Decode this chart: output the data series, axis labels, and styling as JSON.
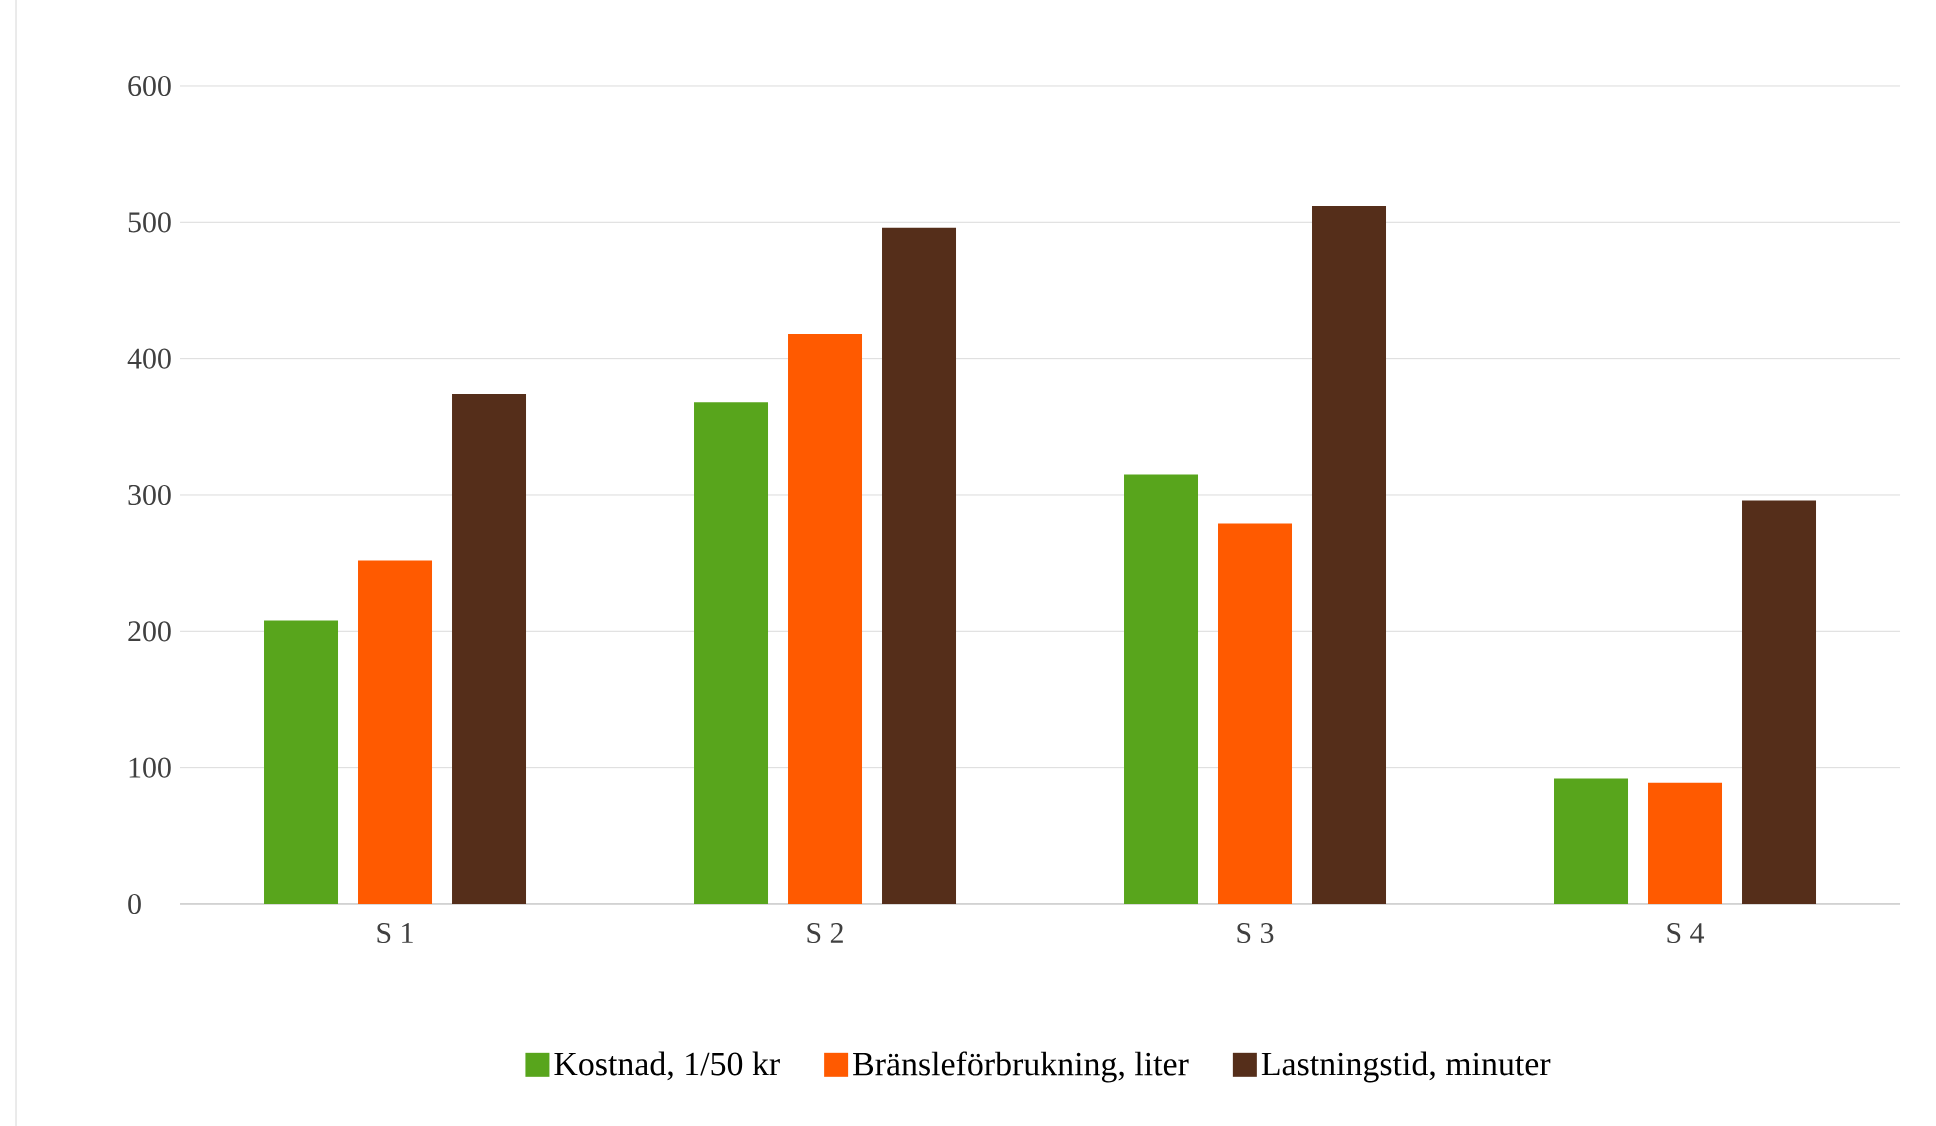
{
  "chart_data": {
    "type": "bar",
    "categories": [
      "S 1",
      "S 2",
      "S 3",
      "S 4"
    ],
    "series": [
      {
        "name": "Kostnad, 1/50 kr",
        "color": "#58a51c",
        "values": [
          208,
          368,
          315,
          92
        ]
      },
      {
        "name": "Bränsleförbrukning, liter",
        "color": "#ff5a00",
        "values": [
          252,
          418,
          279,
          89
        ]
      },
      {
        "name": "Lastningstid, minuter",
        "color": "#552e1a",
        "values": [
          374,
          496,
          512,
          296
        ]
      }
    ],
    "ylim": [
      0,
      600
    ],
    "yticks": [
      0,
      100,
      200,
      300,
      400,
      500,
      600
    ],
    "grid": "y",
    "legend": "bottom"
  }
}
